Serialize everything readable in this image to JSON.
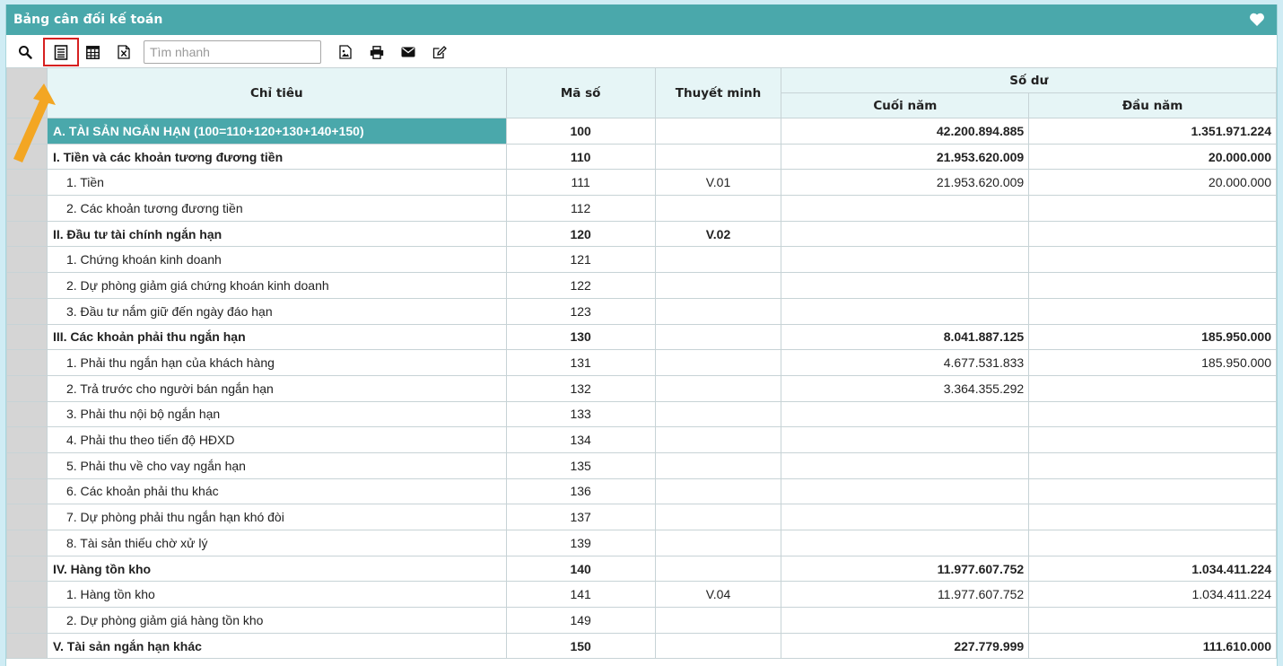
{
  "window": {
    "title": "Bảng cân đối kế toán",
    "heart_icon": "heart-icon"
  },
  "toolbar": {
    "search_icon": "search-icon",
    "buttons": [
      "report-view-icon",
      "calculator-icon",
      "excel-icon",
      "image-export-icon",
      "print-icon",
      "email-icon",
      "edit-icon"
    ],
    "search_placeholder": "Tìm nhanh"
  },
  "table": {
    "headers": {
      "chi_tieu": "Chỉ tiêu",
      "ma_so": "Mã số",
      "thuyet_minh": "Thuyết minh",
      "so_du": "Số dư",
      "cuoi_nam": "Cuối năm",
      "dau_nam": "Đầu năm"
    },
    "rows": [
      {
        "label": "A. TÀI SẢN NGẮN HẠN (100=110+120+130+140+150)",
        "code": "100",
        "note": "",
        "end": "42.200.894.885",
        "start": "1.351.971.224",
        "level": 0
      },
      {
        "label": "I. Tiền và các khoản tương đương tiền",
        "code": "110",
        "note": "",
        "end": "21.953.620.009",
        "start": "20.000.000",
        "level": 1
      },
      {
        "label": "1. Tiền",
        "code": "111",
        "note": "V.01",
        "end": "21.953.620.009",
        "start": "20.000.000",
        "level": 2
      },
      {
        "label": "2. Các khoản tương đương tiền",
        "code": "112",
        "note": "",
        "end": "",
        "start": "",
        "level": 2
      },
      {
        "label": "II. Đầu tư tài chính ngắn hạn",
        "code": "120",
        "note": "V.02",
        "end": "",
        "start": "",
        "level": 1
      },
      {
        "label": "1. Chứng khoán kinh doanh",
        "code": "121",
        "note": "",
        "end": "",
        "start": "",
        "level": 2
      },
      {
        "label": "2. Dự phòng giảm giá chứng khoán kinh doanh",
        "code": "122",
        "note": "",
        "end": "",
        "start": "",
        "level": 2
      },
      {
        "label": "3. Đầu tư nắm giữ đến ngày đáo hạn",
        "code": "123",
        "note": "",
        "end": "",
        "start": "",
        "level": 2
      },
      {
        "label": "III. Các khoản phải thu ngắn hạn",
        "code": "130",
        "note": "",
        "end": "8.041.887.125",
        "start": "185.950.000",
        "level": 1
      },
      {
        "label": "1. Phải thu ngắn hạn của khách hàng",
        "code": "131",
        "note": "",
        "end": "4.677.531.833",
        "start": "185.950.000",
        "level": 2
      },
      {
        "label": "2. Trả trước cho người bán ngắn hạn",
        "code": "132",
        "note": "",
        "end": "3.364.355.292",
        "start": "",
        "level": 2
      },
      {
        "label": "3. Phải thu nội bộ ngắn hạn",
        "code": "133",
        "note": "",
        "end": "",
        "start": "",
        "level": 2
      },
      {
        "label": "4. Phải thu theo tiến độ HĐXD",
        "code": "134",
        "note": "",
        "end": "",
        "start": "",
        "level": 2
      },
      {
        "label": "5. Phải thu về cho vay ngắn hạn",
        "code": "135",
        "note": "",
        "end": "",
        "start": "",
        "level": 2
      },
      {
        "label": "6. Các khoản phải thu khác",
        "code": "136",
        "note": "",
        "end": "",
        "start": "",
        "level": 2
      },
      {
        "label": "7. Dự phòng phải thu ngắn hạn khó đòi",
        "code": "137",
        "note": "",
        "end": "",
        "start": "",
        "level": 2
      },
      {
        "label": "8. Tài sản thiếu chờ xử lý",
        "code": "139",
        "note": "",
        "end": "",
        "start": "",
        "level": 2
      },
      {
        "label": "IV. Hàng tồn kho",
        "code": "140",
        "note": "",
        "end": "11.977.607.752",
        "start": "1.034.411.224",
        "level": 1
      },
      {
        "label": "1. Hàng tồn kho",
        "code": "141",
        "note": "V.04",
        "end": "11.977.607.752",
        "start": "1.034.411.224",
        "level": 2
      },
      {
        "label": "2. Dự phòng giảm giá hàng tồn kho",
        "code": "149",
        "note": "",
        "end": "",
        "start": "",
        "level": 2
      },
      {
        "label": "V. Tài sản ngắn hạn khác",
        "code": "150",
        "note": "",
        "end": "227.779.999",
        "start": "111.610.000",
        "level": 1
      }
    ]
  },
  "colors": {
    "header_bar": "#4aa8ab",
    "header_cells": "#e6f5f6",
    "highlight": "#d62020",
    "arrow": "#f3a623"
  }
}
